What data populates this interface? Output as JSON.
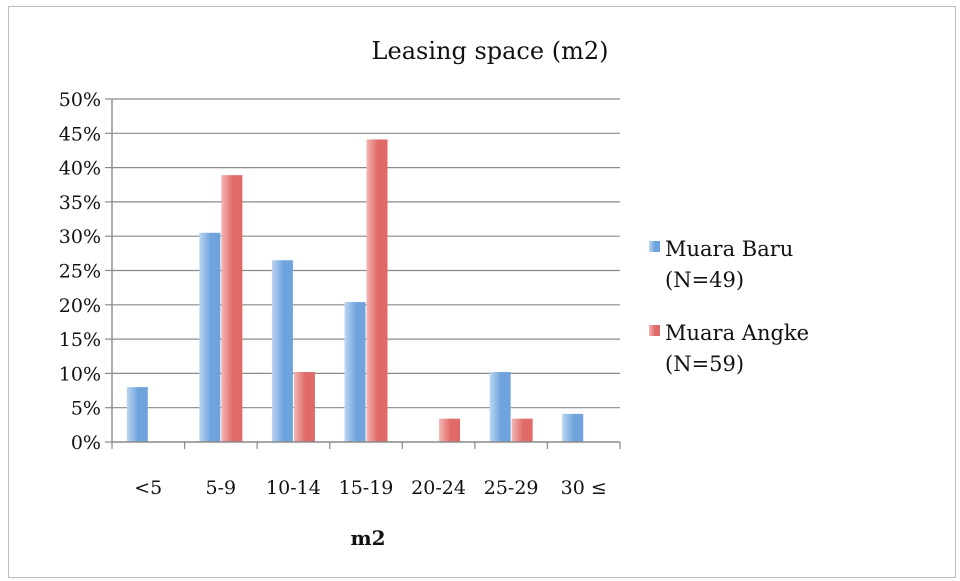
{
  "chart_data": {
    "type": "bar",
    "title": "Leasing space (m2)",
    "xlabel": "m2",
    "ylabel": "",
    "categories": [
      "<5",
      "5-9",
      "10-14",
      "15-19",
      "20-24",
      "25-29",
      "30 ≤"
    ],
    "series": [
      {
        "name_lines": [
          "Muara Baru",
          "(N=49)"
        ],
        "values": [
          8,
          30.5,
          26.5,
          20.4,
          0,
          10.2,
          4.1
        ],
        "color": "#6fa3dd",
        "color_light": "#bcd6f2"
      },
      {
        "name_lines": [
          "Muara Angke",
          "(N=59)"
        ],
        "values": [
          0,
          38.9,
          10.2,
          44.1,
          3.4,
          3.4,
          0
        ],
        "color": "#e06a67",
        "color_light": "#f2b6b3"
      }
    ],
    "ylim": [
      0,
      50
    ],
    "ytick_step": 5,
    "ytick_labels": [
      "0%",
      "5%",
      "10%",
      "15%",
      "20%",
      "25%",
      "30%",
      "35%",
      "40%",
      "45%",
      "50%"
    ],
    "grid": true,
    "legend_position": "right"
  }
}
